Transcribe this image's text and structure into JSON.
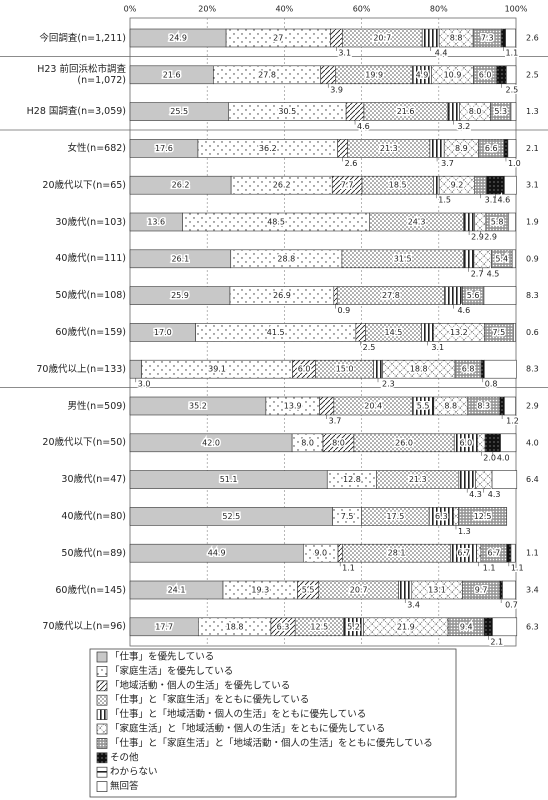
{
  "chart_data": {
    "type": "stacked-bar-horizontal",
    "xlim": [
      0,
      100
    ],
    "xticks": [
      {
        "value": 0,
        "label": "0%"
      },
      {
        "value": 20,
        "label": "20%"
      },
      {
        "value": 40,
        "label": "40%"
      },
      {
        "value": 60,
        "label": "60%"
      },
      {
        "value": 80,
        "label": "80%"
      },
      {
        "value": 100,
        "label": "100%"
      }
    ],
    "categories": [
      "今回調査(n=1,211)",
      "H23 前回浜松市調査(n=1,072)",
      "H28 国調査(n=3,059)",
      "女性(n=682)",
      "20歳代以下(n=65)",
      "30歳代(n=103)",
      "40歳代(n=111)",
      "50歳代(n=108)",
      "60歳代(n=159)",
      "70歳代以上(n=133)",
      "男性(n=509)",
      "20歳代以下(n=50)",
      "30歳代(n=47)",
      "40歳代(n=80)",
      "50歳代(n=89)",
      "60歳代(n=145)",
      "70歳代以上(n=96)"
    ],
    "series": [
      {
        "name": "「仕事」を優先している",
        "values": [
          24.9,
          21.6,
          25.5,
          17.6,
          26.2,
          13.6,
          26.1,
          25.9,
          17.0,
          3.0,
          35.2,
          42.0,
          51.1,
          52.5,
          44.9,
          24.1,
          17.7
        ],
        "value_labels": [
          null,
          null,
          null,
          null,
          null,
          null,
          null,
          null,
          "17.0",
          "3.0",
          null,
          "42.0",
          null,
          null,
          null,
          null,
          null
        ]
      },
      {
        "name": "「家庭生活」を優先している",
        "values": [
          27.0,
          27.8,
          30.5,
          36.2,
          26.2,
          48.5,
          28.8,
          26.9,
          41.5,
          39.1,
          13.9,
          8.0,
          12.8,
          7.5,
          9.0,
          19.3,
          18.8
        ],
        "value_labels": [
          null,
          null,
          null,
          null,
          null,
          null,
          null,
          null,
          null,
          null,
          null,
          "8.0",
          null,
          null,
          "9.0",
          null,
          null
        ]
      },
      {
        "name": "「地域活動・個人の生活」を優先している",
        "values": [
          3.1,
          3.9,
          4.6,
          2.6,
          7.7,
          null,
          null,
          0.9,
          2.5,
          6.0,
          3.7,
          8.0,
          null,
          null,
          1.1,
          5.5,
          6.3
        ],
        "value_labels": [
          null,
          null,
          null,
          null,
          null,
          null,
          null,
          null,
          null,
          "6.0",
          null,
          "8.0",
          null,
          null,
          null,
          null,
          null
        ]
      },
      {
        "name": "「仕事」と「家庭生活」をともに優先している",
        "values": [
          20.7,
          19.9,
          21.6,
          21.3,
          18.5,
          24.3,
          31.5,
          27.8,
          14.5,
          15.0,
          20.4,
          26.0,
          21.3,
          17.5,
          28.1,
          20.7,
          12.5
        ],
        "value_labels": [
          null,
          null,
          null,
          null,
          null,
          null,
          null,
          null,
          null,
          "15.0",
          null,
          "26.0",
          null,
          null,
          null,
          null,
          null
        ]
      },
      {
        "name": "「仕事」と「地域活動・個人の生活」をともに優先している",
        "values": [
          4.4,
          4.9,
          3.2,
          3.7,
          1.5,
          2.9,
          2.7,
          4.6,
          3.1,
          2.3,
          5.5,
          6.0,
          4.3,
          6.3,
          6.7,
          3.4,
          5.2
        ],
        "value_labels": [
          null,
          null,
          null,
          null,
          null,
          null,
          null,
          null,
          null,
          null,
          null,
          "6.0",
          null,
          null,
          null,
          null,
          null
        ]
      },
      {
        "name": "「家庭生活」と「地域活動・個人の生活」をともに優先している",
        "values": [
          8.8,
          10.9,
          8.0,
          8.9,
          9.2,
          2.9,
          4.5,
          null,
          13.2,
          18.8,
          8.8,
          2.0,
          4.3,
          1.3,
          1.1,
          13.1,
          21.9
        ],
        "value_labels": [
          null,
          null,
          "8.0",
          null,
          null,
          null,
          null,
          null,
          null,
          null,
          null,
          "2.0",
          null,
          null,
          null,
          null,
          null
        ]
      },
      {
        "name": "「仕事」と「家庭生活」と「地域活動・個人の生活」をともに優先している",
        "values": [
          7.3,
          6.0,
          5.3,
          6.6,
          3.1,
          5.8,
          5.4,
          5.6,
          7.5,
          6.8,
          8.3,
          null,
          null,
          12.5,
          6.7,
          9.7,
          9.4
        ],
        "value_labels": [
          null,
          "6.0",
          null,
          null,
          null,
          null,
          null,
          null,
          null,
          null,
          null,
          null,
          null,
          null,
          null,
          null,
          null
        ]
      },
      {
        "name": "その他",
        "values": [
          1.1,
          2.5,
          null,
          1.0,
          4.6,
          null,
          null,
          null,
          null,
          0.8,
          1.2,
          4.0,
          null,
          null,
          1.1,
          0.7,
          2.1
        ],
        "value_labels": [
          null,
          null,
          null,
          "1.0",
          null,
          null,
          null,
          null,
          null,
          null,
          null,
          "4.0",
          null,
          null,
          null,
          null,
          null
        ]
      },
      {
        "name": "わからない",
        "values": [
          null,
          null,
          null,
          null,
          null,
          null,
          null,
          null,
          null,
          null,
          null,
          null,
          null,
          null,
          null,
          null,
          null
        ]
      },
      {
        "name": "無回答",
        "values": [
          2.6,
          2.5,
          1.3,
          2.1,
          3.1,
          1.9,
          0.9,
          8.3,
          0.6,
          8.3,
          2.9,
          4.0,
          6.4,
          null,
          1.1,
          3.4,
          6.3
        ],
        "value_labels": [
          null,
          null,
          null,
          null,
          null,
          null,
          null,
          null,
          null,
          null,
          null,
          "4.0",
          null,
          null,
          null,
          null,
          null
        ]
      }
    ]
  }
}
